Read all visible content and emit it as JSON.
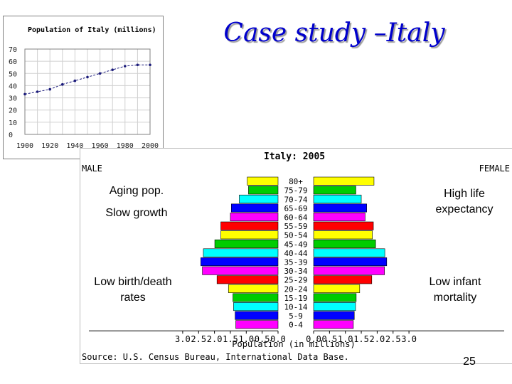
{
  "title": "Case study –Italy",
  "notes": {
    "aging": "Aging pop.",
    "slow_growth": "Slow growth",
    "low_birth_death": "Low birth/death rates",
    "high_life": "High life expectancy",
    "low_infant": "Low infant mortality"
  },
  "page_number": "25",
  "chart_data": [
    {
      "type": "line",
      "title": "Population of Italy (millions)",
      "x": [
        1900,
        1910,
        1920,
        1930,
        1940,
        1950,
        1960,
        1970,
        1980,
        1990,
        2000
      ],
      "values": [
        33,
        35,
        37,
        41,
        44,
        47,
        50,
        53,
        56,
        57,
        57
      ],
      "x_ticks": [
        "1900",
        "1920",
        "1940",
        "1960",
        "1980",
        "2000"
      ],
      "y_ticks": [
        "0",
        "10",
        "20",
        "30",
        "40",
        "50",
        "60",
        "70"
      ],
      "xlim": [
        1900,
        2000
      ],
      "ylim": [
        0,
        70
      ],
      "color": "#1a1a7a",
      "grid": true
    },
    {
      "type": "bar",
      "title": "Italy: 2005",
      "left_label": "MALE",
      "right_label": "FEMALE",
      "xlabel": "Population (in millions)",
      "source": "Source: U.S. Census Bureau, International Data Base.",
      "x_ticks": [
        "3.0",
        "2.5",
        "2.0",
        "1.5",
        "1.0",
        "0.5",
        "0.0",
        "0.0",
        "0.5",
        "1.0",
        "1.5",
        "2.0",
        "2.5",
        "3.0"
      ],
      "xlim": [
        0,
        3
      ],
      "categories": [
        "80+",
        "75-79",
        "70-74",
        "65-69",
        "60-64",
        "55-59",
        "50-54",
        "45-49",
        "40-44",
        "35-39",
        "30-34",
        "25-29",
        "20-24",
        "15-19",
        "10-14",
        "5-9",
        "0-4"
      ],
      "series": [
        {
          "values": [
            0.97,
            0.93,
            1.22,
            1.47,
            1.5,
            1.8,
            1.8,
            1.99,
            2.35,
            2.43,
            2.38,
            1.92,
            1.56,
            1.42,
            1.4,
            1.35,
            1.33
          ]
        },
        {
          "values": [
            1.9,
            1.33,
            1.5,
            1.67,
            1.62,
            1.88,
            1.85,
            1.95,
            2.24,
            2.3,
            2.23,
            1.83,
            1.45,
            1.34,
            1.32,
            1.28,
            1.25
          ]
        }
      ],
      "colors": [
        "#ffff00",
        "#00cc00",
        "#00ffff",
        "#0000ff",
        "#ff00ff",
        "#ff0000",
        "#ffff00",
        "#00cc00",
        "#00ffff",
        "#0000ff",
        "#ff00ff",
        "#ff0000",
        "#ffff00",
        "#00cc00",
        "#00ffff",
        "#0000ff",
        "#ff00ff"
      ]
    }
  ]
}
